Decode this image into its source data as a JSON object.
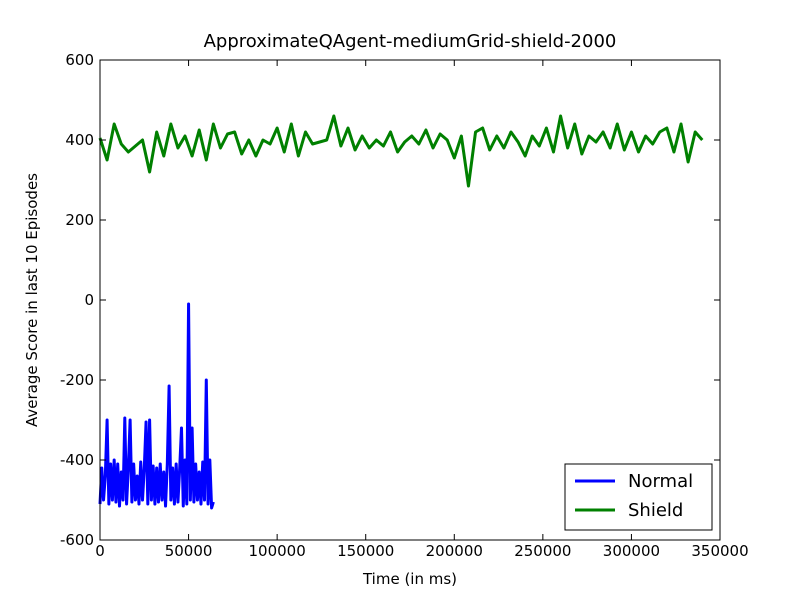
{
  "chart_data": {
    "type": "line",
    "title": "ApproximateQAgent-mediumGrid-shield-2000",
    "x_label": "Time (in ms)",
    "y_label": "Average Score in last 10 Episodes",
    "xlim": [
      0,
      350000
    ],
    "ylim": [
      -600,
      600
    ],
    "xticks": [
      0,
      50000,
      100000,
      150000,
      200000,
      250000,
      300000,
      350000
    ],
    "yticks": [
      -600,
      -400,
      -200,
      0,
      200,
      400,
      600
    ],
    "grid": false,
    "legend_position": "lower right",
    "series": [
      {
        "name": "Normal",
        "color": "#0000ff",
        "x": [
          0,
          1000,
          2000,
          3000,
          4000,
          5000,
          6000,
          7000,
          8000,
          9000,
          10000,
          11000,
          12000,
          13000,
          14000,
          15000,
          16000,
          17000,
          18000,
          19000,
          20000,
          21000,
          22000,
          23000,
          24000,
          25000,
          26000,
          27000,
          28000,
          29000,
          30000,
          31000,
          32000,
          33000,
          34000,
          35000,
          36000,
          37000,
          38000,
          39000,
          40000,
          41000,
          42000,
          43000,
          44000,
          45000,
          46000,
          47000,
          48000,
          49000,
          50000,
          51000,
          52000,
          53000,
          54000,
          55000,
          56000,
          57000,
          58000,
          59000,
          60000,
          61000,
          62000,
          63000,
          64000
        ],
        "values": [
          -510,
          -420,
          -500,
          -440,
          -300,
          -510,
          -410,
          -500,
          -400,
          -505,
          -410,
          -515,
          -430,
          -500,
          -295,
          -510,
          -420,
          -300,
          -505,
          -410,
          -500,
          -440,
          -510,
          -405,
          -500,
          -420,
          -305,
          -510,
          -300,
          -500,
          -415,
          -510,
          -420,
          -505,
          -410,
          -500,
          -430,
          -515,
          -410,
          -215,
          -500,
          -420,
          -510,
          -410,
          -505,
          -420,
          -320,
          -515,
          -400,
          -510,
          -10,
          -500,
          -320,
          -505,
          -410,
          -500,
          -430,
          -510,
          -405,
          -500,
          -200,
          -510,
          -400,
          -520,
          -505
        ]
      },
      {
        "name": "Shield",
        "color": "#008000",
        "x": [
          0,
          4000,
          8000,
          12000,
          16000,
          20000,
          24000,
          28000,
          32000,
          36000,
          40000,
          44000,
          48000,
          52000,
          56000,
          60000,
          64000,
          68000,
          72000,
          76000,
          80000,
          84000,
          88000,
          92000,
          96000,
          100000,
          104000,
          108000,
          112000,
          116000,
          120000,
          124000,
          128000,
          132000,
          136000,
          140000,
          144000,
          148000,
          152000,
          156000,
          160000,
          164000,
          168000,
          172000,
          176000,
          180000,
          184000,
          188000,
          192000,
          196000,
          200000,
          204000,
          208000,
          212000,
          216000,
          220000,
          224000,
          228000,
          232000,
          236000,
          240000,
          244000,
          248000,
          252000,
          256000,
          260000,
          264000,
          268000,
          272000,
          276000,
          280000,
          284000,
          288000,
          292000,
          296000,
          300000,
          304000,
          308000,
          312000,
          316000,
          320000,
          324000,
          328000,
          332000,
          336000,
          340000
        ],
        "values": [
          405,
          350,
          440,
          390,
          370,
          385,
          400,
          320,
          420,
          360,
          440,
          380,
          410,
          360,
          425,
          350,
          440,
          380,
          415,
          420,
          365,
          400,
          360,
          400,
          390,
          430,
          370,
          440,
          360,
          420,
          390,
          395,
          400,
          460,
          385,
          430,
          375,
          410,
          380,
          400,
          385,
          420,
          370,
          395,
          410,
          390,
          425,
          380,
          415,
          400,
          355,
          410,
          285,
          420,
          430,
          375,
          410,
          380,
          420,
          395,
          360,
          410,
          385,
          430,
          370,
          460,
          380,
          440,
          365,
          410,
          395,
          420,
          380,
          440,
          375,
          420,
          370,
          410,
          390,
          420,
          430,
          370,
          440,
          345,
          420,
          400
        ]
      }
    ]
  }
}
